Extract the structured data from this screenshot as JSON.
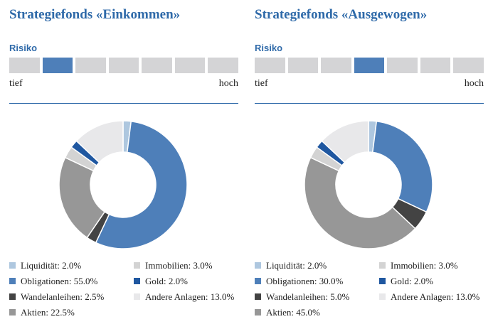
{
  "risk_label": "Risiko",
  "risk_low": "tief",
  "risk_high": "hoch",
  "risk_levels": 7,
  "colors": {
    "Liquidität": "#aec7df",
    "Obligationen": "#4e7fb9",
    "Wandelanleihen": "#434343",
    "Aktien": "#979797",
    "Immobilien": "#d3d3d3",
    "Gold": "#1f57a0",
    "Andere Anlagen": "#e8e8ea"
  },
  "chart_data": [
    {
      "type": "pie",
      "title": "Strategiefonds «Einkommen»",
      "risk_level": 2,
      "categories": [
        "Liquidität",
        "Obligationen",
        "Wandelanleihen",
        "Aktien",
        "Immobilien",
        "Gold",
        "Andere Anlagen"
      ],
      "values": [
        2.0,
        55.0,
        2.5,
        22.5,
        3.0,
        2.0,
        13.0
      ],
      "legend": [
        {
          "name": "Liquidität",
          "label": "Liquidität: 2.0%"
        },
        {
          "name": "Immobilien",
          "label": "Immobilien: 3.0%"
        },
        {
          "name": "Obligationen",
          "label": "Obligationen: 55.0%"
        },
        {
          "name": "Gold",
          "label": "Gold: 2.0%"
        },
        {
          "name": "Wandelanleihen",
          "label": "Wandelanleihen: 2.5%"
        },
        {
          "name": "Andere Anlagen",
          "label": "Andere Anlagen: 13.0%"
        },
        {
          "name": "Aktien",
          "label": "Aktien: 22.5%"
        }
      ]
    },
    {
      "type": "pie",
      "title": "Strategiefonds «Ausgewogen»",
      "risk_level": 4,
      "categories": [
        "Liquidität",
        "Obligationen",
        "Wandelanleihen",
        "Aktien",
        "Immobilien",
        "Gold",
        "Andere Anlagen"
      ],
      "values": [
        2.0,
        30.0,
        5.0,
        45.0,
        3.0,
        2.0,
        13.0
      ],
      "legend": [
        {
          "name": "Liquidität",
          "label": "Liquidität: 2.0%"
        },
        {
          "name": "Immobilien",
          "label": "Immobilien: 3.0%"
        },
        {
          "name": "Obligationen",
          "label": "Obligationen: 30.0%"
        },
        {
          "name": "Gold",
          "label": "Gold: 2.0%"
        },
        {
          "name": "Wandelanleihen",
          "label": "Wandelanleihen: 5.0%"
        },
        {
          "name": "Andere Anlagen",
          "label": "Andere Anlagen: 13.0%"
        },
        {
          "name": "Aktien",
          "label": "Aktien: 45.0%"
        }
      ]
    }
  ]
}
